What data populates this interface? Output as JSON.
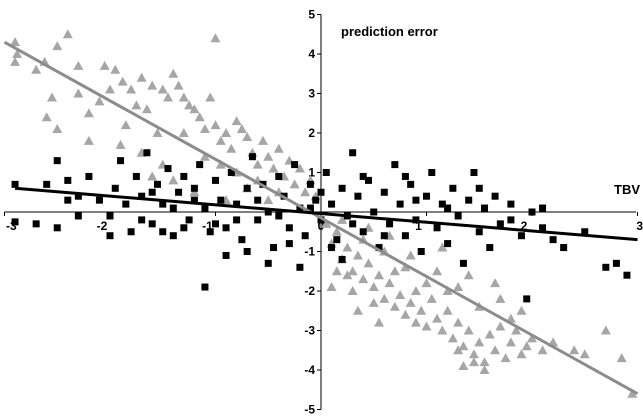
{
  "chart_data": {
    "type": "scatter",
    "title": "",
    "xlabel": "TBV",
    "ylabel": "prediction error",
    "xlim": [
      -3,
      3
    ],
    "ylim": [
      -5,
      5
    ],
    "x_ticks": [
      "-3",
      "-2",
      "-1",
      "0",
      "1",
      "2",
      "3"
    ],
    "y_ticks": [
      "-5",
      "-4",
      "-3",
      "-2",
      "-1",
      "0",
      "1",
      "2",
      "3",
      "4",
      "5"
    ],
    "grid": false,
    "legend": "none",
    "series": [
      {
        "marker": "triangle",
        "color": "#a6a6a6",
        "trendline": {
          "x": [
            -3.0,
            3.0
          ],
          "y": [
            4.3,
            -4.6
          ],
          "color": "#8c8c8c"
        },
        "points": [
          [
            -2.9,
            4.3
          ],
          [
            -2.88,
            4.0
          ],
          [
            -2.9,
            3.8
          ],
          [
            -2.7,
            3.6
          ],
          [
            -2.62,
            3.8
          ],
          [
            -2.5,
            4.2
          ],
          [
            -2.4,
            4.5
          ],
          [
            -2.3,
            3.7
          ],
          [
            -2.55,
            2.9
          ],
          [
            -2.6,
            2.4
          ],
          [
            -2.5,
            2.1
          ],
          [
            -2.3,
            3.0
          ],
          [
            -2.2,
            2.5
          ],
          [
            -2.1,
            2.8
          ],
          [
            -2.05,
            3.7
          ],
          [
            -2.0,
            3.1
          ],
          [
            -1.95,
            3.6
          ],
          [
            -1.88,
            3.3
          ],
          [
            -1.8,
            3.1
          ],
          [
            -1.75,
            2.7
          ],
          [
            -1.7,
            3.4
          ],
          [
            -1.6,
            3.2
          ],
          [
            -1.5,
            3.1
          ],
          [
            -1.45,
            2.9
          ],
          [
            -1.4,
            3.5
          ],
          [
            -1.35,
            3.2
          ],
          [
            -1.3,
            2.9
          ],
          [
            -1.25,
            2.7
          ],
          [
            -1.2,
            2.6
          ],
          [
            -1.15,
            2.4
          ],
          [
            -1.1,
            2.1
          ],
          [
            -1.05,
            2.9
          ],
          [
            -1.0,
            2.2
          ],
          [
            -1.0,
            4.4
          ],
          [
            -0.95,
            1.8
          ],
          [
            -0.9,
            2.0
          ],
          [
            -0.85,
            1.6
          ],
          [
            -0.8,
            2.3
          ],
          [
            -0.75,
            2.1
          ],
          [
            -0.7,
            1.9
          ],
          [
            -0.65,
            1.5
          ],
          [
            -0.6,
            1.2
          ],
          [
            -0.55,
            1.8
          ],
          [
            -0.5,
            1.4
          ],
          [
            -0.45,
            1.1
          ],
          [
            -0.4,
            1.6
          ],
          [
            -0.35,
            0.9
          ],
          [
            -0.3,
            1.3
          ],
          [
            -0.25,
            0.7
          ],
          [
            -0.2,
            1.1
          ],
          [
            -0.15,
            0.5
          ],
          [
            -0.1,
            0.8
          ],
          [
            -0.05,
            0.4
          ],
          [
            -1.85,
            2.2
          ],
          [
            -1.65,
            2.6
          ],
          [
            -1.55,
            2.0
          ],
          [
            -1.3,
            2.0
          ],
          [
            -1.1,
            1.4
          ],
          [
            -0.95,
            1.2
          ],
          [
            -0.8,
            1.0
          ],
          [
            -0.7,
            0.6
          ],
          [
            -0.6,
            0.8
          ],
          [
            -0.5,
            0.3
          ],
          [
            -0.4,
            0.5
          ],
          [
            -1.7,
            1.5
          ],
          [
            -1.5,
            1.2
          ],
          [
            -1.9,
            1.7
          ],
          [
            -2.2,
            1.8
          ],
          [
            -1.4,
            0.8
          ],
          [
            -1.2,
            0.5
          ],
          [
            -0.9,
            0.3
          ],
          [
            -1.6,
            0.9
          ],
          [
            0.05,
            -0.3
          ],
          [
            0.1,
            -0.8
          ],
          [
            0.15,
            -0.5
          ],
          [
            0.2,
            -1.2
          ],
          [
            0.25,
            -0.9
          ],
          [
            0.3,
            -1.5
          ],
          [
            0.35,
            -1.1
          ],
          [
            0.4,
            -1.7
          ],
          [
            0.45,
            -1.3
          ],
          [
            0.5,
            -1.9
          ],
          [
            0.55,
            -1.6
          ],
          [
            0.6,
            -2.2
          ],
          [
            0.65,
            -1.8
          ],
          [
            0.7,
            -2.4
          ],
          [
            0.75,
            -2.1
          ],
          [
            0.8,
            -2.6
          ],
          [
            0.85,
            -2.3
          ],
          [
            0.9,
            -2.8
          ],
          [
            0.95,
            -2.5
          ],
          [
            1.0,
            -2.9
          ],
          [
            1.05,
            -2.2
          ],
          [
            1.1,
            -2.7
          ],
          [
            1.15,
            -3.0
          ],
          [
            1.2,
            -2.5
          ],
          [
            1.25,
            -3.2
          ],
          [
            1.3,
            -2.8
          ],
          [
            1.35,
            -3.4
          ],
          [
            1.4,
            -3.0
          ],
          [
            1.45,
            -3.6
          ],
          [
            1.5,
            -3.3
          ],
          [
            1.55,
            -3.8
          ],
          [
            1.6,
            -3.1
          ],
          [
            1.65,
            -3.5
          ],
          [
            1.7,
            -2.9
          ],
          [
            1.75,
            -3.7
          ],
          [
            1.8,
            -3.3
          ],
          [
            1.85,
            -3.0
          ],
          [
            1.9,
            -3.6
          ],
          [
            1.95,
            -3.4
          ],
          [
            2.0,
            -3.2
          ],
          [
            2.1,
            -3.5
          ],
          [
            2.2,
            -3.3
          ],
          [
            2.4,
            -3.5
          ],
          [
            2.5,
            -3.6
          ],
          [
            2.7,
            -3.0
          ],
          [
            2.85,
            -3.7
          ],
          [
            2.95,
            -4.6
          ],
          [
            1.55,
            -4.0
          ],
          [
            1.45,
            -3.8
          ],
          [
            1.35,
            -3.9
          ],
          [
            0.2,
            -0.2
          ],
          [
            0.4,
            -0.7
          ],
          [
            0.6,
            -1.0
          ],
          [
            0.8,
            -1.4
          ],
          [
            1.0,
            -1.8
          ],
          [
            1.2,
            -2.0
          ],
          [
            0.3,
            -2.0
          ],
          [
            0.5,
            -2.3
          ],
          [
            0.7,
            -1.5
          ],
          [
            0.9,
            -2.0
          ],
          [
            1.1,
            -1.5
          ],
          [
            1.3,
            -1.9
          ],
          [
            1.5,
            -2.4
          ],
          [
            1.7,
            -2.2
          ],
          [
            0.15,
            -1.5
          ],
          [
            0.45,
            -0.4
          ],
          [
            0.65,
            -0.6
          ],
          [
            0.85,
            -1.1
          ],
          [
            1.15,
            -0.9
          ],
          [
            1.4,
            -1.6
          ],
          [
            1.65,
            -1.8
          ],
          [
            1.9,
            -2.5
          ],
          [
            0.1,
            -1.9
          ],
          [
            0.35,
            -2.5
          ],
          [
            0.55,
            -2.8
          ],
          [
            0.25,
            -1.6
          ],
          [
            1.3,
            -3.5
          ],
          [
            1.8,
            -2.7
          ]
        ]
      },
      {
        "marker": "square",
        "color": "#000000",
        "trendline": {
          "x": [
            -2.9,
            3.0
          ],
          "y": [
            0.6,
            -0.7
          ],
          "color": "#000000"
        },
        "points": [
          [
            -2.9,
            0.7
          ],
          [
            -2.9,
            -0.25
          ],
          [
            -2.6,
            0.7
          ],
          [
            -2.5,
            1.3
          ],
          [
            -2.4,
            0.8
          ],
          [
            -2.3,
            0.4
          ],
          [
            -2.2,
            0.9
          ],
          [
            -2.1,
            0.3
          ],
          [
            -2.0,
            -0.1
          ],
          [
            -1.95,
            0.6
          ],
          [
            -1.9,
            1.3
          ],
          [
            -1.85,
            0.2
          ],
          [
            -1.8,
            -0.5
          ],
          [
            -1.75,
            0.9
          ],
          [
            -1.7,
            0.4
          ],
          [
            -1.65,
            1.5
          ],
          [
            -1.6,
            -0.3
          ],
          [
            -1.55,
            0.7
          ],
          [
            -1.5,
            0.2
          ],
          [
            -1.45,
            1.1
          ],
          [
            -1.4,
            -0.6
          ],
          [
            -1.35,
            0.5
          ],
          [
            -1.3,
            0.9
          ],
          [
            -1.25,
            -0.2
          ],
          [
            -1.2,
            0.6
          ],
          [
            -1.15,
            1.2
          ],
          [
            -1.1,
            0.1
          ],
          [
            -1.05,
            -0.5
          ],
          [
            -1.0,
            0.8
          ],
          [
            -0.95,
            0.3
          ],
          [
            -0.9,
            -0.4
          ],
          [
            -0.85,
            1.0
          ],
          [
            -0.8,
            0.2
          ],
          [
            -0.75,
            -0.7
          ],
          [
            -0.7,
            0.6
          ],
          [
            -0.65,
            1.4
          ],
          [
            -0.6,
            -0.2
          ],
          [
            -0.55,
            0.7
          ],
          [
            -0.5,
            0.0
          ],
          [
            -0.45,
            -0.9
          ],
          [
            -0.4,
            0.9
          ],
          [
            -0.35,
            0.4
          ],
          [
            -0.3,
            -0.4
          ],
          [
            -0.25,
            1.2
          ],
          [
            -0.2,
            0.1
          ],
          [
            -0.15,
            -0.6
          ],
          [
            -0.1,
            0.7
          ],
          [
            -0.05,
            0.3
          ],
          [
            0.0,
            -0.2
          ],
          [
            0.05,
            1.0
          ],
          [
            0.1,
            0.2
          ],
          [
            0.15,
            -0.7
          ],
          [
            0.2,
            0.6
          ],
          [
            0.25,
            -0.1
          ],
          [
            0.3,
            1.5
          ],
          [
            0.35,
            0.4
          ],
          [
            0.4,
            -0.5
          ],
          [
            0.45,
            0.8
          ],
          [
            0.5,
            0.0
          ],
          [
            0.55,
            -0.9
          ],
          [
            0.6,
            0.5
          ],
          [
            0.65,
            -0.3
          ],
          [
            0.7,
            1.2
          ],
          [
            0.75,
            0.2
          ],
          [
            0.8,
            -0.6
          ],
          [
            0.85,
            0.7
          ],
          [
            0.9,
            -0.2
          ],
          [
            0.95,
            -1.0
          ],
          [
            1.0,
            0.4
          ],
          [
            1.05,
            1.0
          ],
          [
            1.1,
            -0.4
          ],
          [
            1.15,
            0.2
          ],
          [
            1.2,
            -0.8
          ],
          [
            1.25,
            0.6
          ],
          [
            1.3,
            -0.1
          ],
          [
            1.35,
            -1.3
          ],
          [
            1.4,
            0.3
          ],
          [
            1.45,
            1.0
          ],
          [
            1.5,
            -0.5
          ],
          [
            1.55,
            0.1
          ],
          [
            1.6,
            -0.9
          ],
          [
            1.65,
            0.4
          ],
          [
            1.7,
            -0.3
          ],
          [
            1.8,
            0.2
          ],
          [
            1.9,
            -0.6
          ],
          [
            2.0,
            0.0
          ],
          [
            2.1,
            -0.4
          ],
          [
            2.2,
            -0.7
          ],
          [
            2.3,
            -0.9
          ],
          [
            2.5,
            -0.5
          ],
          [
            2.7,
            -1.4
          ],
          [
            2.8,
            -1.3
          ],
          [
            2.9,
            -1.6
          ],
          [
            1.95,
            -2.2
          ],
          [
            -1.1,
            -1.9
          ],
          [
            -2.3,
            -0.1
          ],
          [
            -1.3,
            -0.4
          ],
          [
            -0.9,
            -1.1
          ],
          [
            -0.5,
            -1.3
          ],
          [
            -0.2,
            -1.4
          ],
          [
            0.2,
            -1.2
          ],
          [
            -2.7,
            -0.3
          ],
          [
            -2.5,
            -0.4
          ],
          [
            -2.0,
            -0.6
          ],
          [
            -1.7,
            -0.2
          ],
          [
            -0.7,
            -1.0
          ],
          [
            -0.3,
            -0.8
          ],
          [
            0.1,
            -0.9
          ],
          [
            0.4,
            0.9
          ],
          [
            0.8,
            0.9
          ],
          [
            -1.5,
            -0.5
          ],
          [
            -2.4,
            0.3
          ],
          [
            -0.6,
            0.3
          ],
          [
            -0.8,
            -0.2
          ],
          [
            -1.0,
            -0.3
          ],
          [
            -1.2,
            0.3
          ],
          [
            -1.4,
            0.1
          ],
          [
            -1.6,
            0.5
          ],
          [
            0.3,
            -0.3
          ],
          [
            0.6,
            -0.6
          ],
          [
            0.9,
            0.3
          ],
          [
            1.2,
            0.1
          ],
          [
            1.5,
            0.6
          ],
          [
            1.8,
            -0.2
          ],
          [
            2.1,
            0.1
          ],
          [
            -0.4,
            -0.1
          ],
          [
            -0.1,
            0.1
          ],
          [
            0.0,
            0.5
          ]
        ]
      }
    ]
  }
}
